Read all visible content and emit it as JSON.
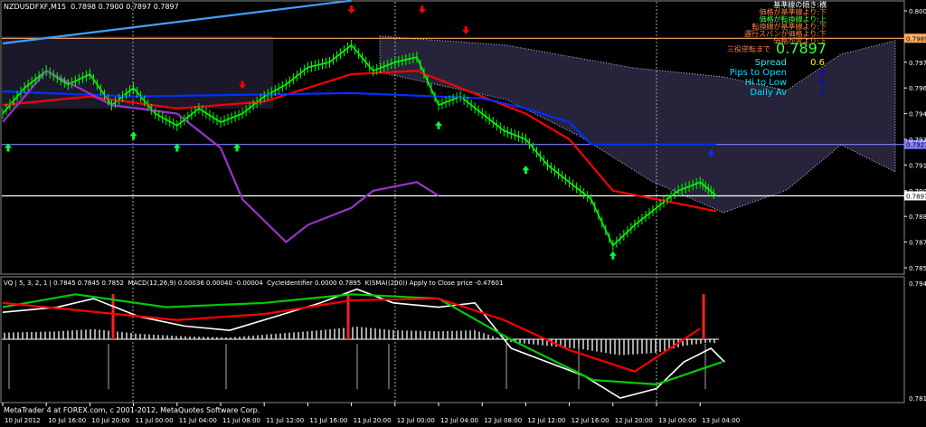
{
  "header": {
    "symbol": "NZDUSDFXF,M15",
    "ohlc": "0.7898 0.7900 0.7897 0.7897"
  },
  "subwindow_header": "VQ | 5, 3, 2, 1 | 0.7845 0.7845 0.7852  MACD(12,26,9) 0.00036 0.00040 -0.00004  CycleIdentifier 0.0000 0.7895  K(SMA((200)) Apply to Close price -0.47601",
  "footer": "MetaTrader 4 at FOREX.com, c 2001-2012, MetaQuotes Software Corp.",
  "ichimoku_status": [
    {
      "text": "基準線の傾き:横",
      "color": "#ffffff"
    },
    {
      "text": "価格が基準線より:下",
      "color": "#ff8040"
    },
    {
      "text": "価格が転換線より:上",
      "color": "#40ff40"
    },
    {
      "text": "転換線が基準線より:下",
      "color": "#ff8040"
    },
    {
      "text": "遅行スパンが価格より:下",
      "color": "#ff8040"
    },
    {
      "text": "価格が雲より:下",
      "color": "#ff8040"
    },
    {
      "text": "三役逆転まで",
      "color": "#ff8040"
    }
  ],
  "info_panel": {
    "price": "0.7897",
    "rows": [
      {
        "label": "Spread",
        "value": "0.6",
        "label_color": "#40e0f0",
        "value_color": "#ffff00"
      },
      {
        "label": "Pips to Open",
        "value": "2",
        "label_color": "#00e0ff",
        "value_color": "#0000ff"
      },
      {
        "label": "Hi to Low",
        "value": "4",
        "label_color": "#00e0ff",
        "value_color": "#0000ff"
      },
      {
        "label": "Daily Av",
        "value": "7",
        "label_color": "#00e0ff",
        "value_color": "#0000ff"
      }
    ]
  },
  "colors": {
    "background": "#000000",
    "candles": "#00ff00",
    "kijun": "#ff0000",
    "blue_line": "#0030ff",
    "chikou": "#9933cc",
    "cloud": "#ccccff",
    "orange_level": "#ffb060",
    "lavender_level": "#8080ff"
  },
  "chart_data": [
    {
      "type": "line",
      "title": "NZDUSDFXF,M15",
      "ylim": [
        0.7848,
        0.8012
      ],
      "y_ticks": [
        "0.8005",
        "0.7975",
        "0.7960",
        "0.7945",
        "0.7930",
        "0.7915",
        "0.7900",
        "0.7885",
        "0.7870",
        "0.7855"
      ],
      "highlighted_levels": [
        {
          "value": "0.7989",
          "color": "#ffb060",
          "text_color": "#000000"
        },
        {
          "value": "0.7927",
          "color": "#8080ff",
          "text_color": "#000000"
        },
        {
          "value": "0.7897",
          "color": "#ffffff",
          "text_color": "#000000"
        }
      ],
      "x_ticks": [
        "10 Jul 2012",
        "10 Jul 16:00",
        "10 Jul 20:00",
        "11 Jul 00:00",
        "11 Jul 04:00",
        "11 Jul 08:00",
        "11 Jul 12:00",
        "11 Jul 16:00",
        "11 Jul 20:00",
        "12 Jul 00:00",
        "12 Jul 04:00",
        "12 Jul 08:00",
        "12 Jul 12:00",
        "12 Jul 16:00",
        "12 Jul 20:00",
        "13 Jul 00:00",
        "13 Jul 04:00"
      ],
      "series": [
        {
          "id": "close",
          "color": "#00ff00",
          "points": [
            [
              "10 Jul 12:00",
              0.7945
            ],
            [
              "10 Jul 14:00",
              0.796
            ],
            [
              "10 Jul 16:00",
              0.797
            ],
            [
              "10 Jul 18:00",
              0.7962
            ],
            [
              "10 Jul 20:00",
              0.7968
            ],
            [
              "10 Jul 22:00",
              0.795
            ],
            [
              "11 Jul 00:00",
              0.796
            ],
            [
              "11 Jul 02:00",
              0.7945
            ],
            [
              "11 Jul 04:00",
              0.7938
            ],
            [
              "11 Jul 06:00",
              0.7948
            ],
            [
              "11 Jul 08:00",
              0.794
            ],
            [
              "11 Jul 10:00",
              0.7945
            ],
            [
              "11 Jul 12:00",
              0.7955
            ],
            [
              "11 Jul 14:00",
              0.7962
            ],
            [
              "11 Jul 16:00",
              0.7972
            ],
            [
              "11 Jul 18:00",
              0.7975
            ],
            [
              "11 Jul 20:00",
              0.7985
            ],
            [
              "11 Jul 22:00",
              0.797
            ],
            [
              "12 Jul 00:00",
              0.7975
            ],
            [
              "12 Jul 02:00",
              0.7978
            ],
            [
              "12 Jul 04:00",
              0.795
            ],
            [
              "12 Jul 06:00",
              0.7955
            ],
            [
              "12 Jul 08:00",
              0.7945
            ],
            [
              "12 Jul 10:00",
              0.7935
            ],
            [
              "12 Jul 12:00",
              0.793
            ],
            [
              "12 Jul 14:00",
              0.7915
            ],
            [
              "12 Jul 16:00",
              0.7905
            ],
            [
              "12 Jul 18:00",
              0.7895
            ],
            [
              "12 Jul 20:00",
              0.7868
            ],
            [
              "12 Jul 22:00",
              0.788
            ],
            [
              "13 Jul 00:00",
              0.789
            ],
            [
              "13 Jul 02:00",
              0.79
            ],
            [
              "13 Jul 04:00",
              0.7905
            ],
            [
              "13 Jul 05:30",
              0.7897
            ]
          ]
        },
        {
          "id": "kijun",
          "color": "#ff0000",
          "points": [
            [
              "10 Jul 12:00",
              0.795
            ],
            [
              "10 Jul 20:00",
              0.7955
            ],
            [
              "11 Jul 04:00",
              0.7948
            ],
            [
              "11 Jul 12:00",
              0.7952
            ],
            [
              "11 Jul 20:00",
              0.7968
            ],
            [
              "12 Jul 02:00",
              0.797
            ],
            [
              "12 Jul 08:00",
              0.7955
            ],
            [
              "12 Jul 12:00",
              0.7945
            ],
            [
              "12 Jul 16:00",
              0.793
            ],
            [
              "12 Jul 20:00",
              0.79
            ],
            [
              "13 Jul 00:00",
              0.7895
            ],
            [
              "13 Jul 05:30",
              0.7888
            ]
          ]
        },
        {
          "id": "blue",
          "color": "#0030ff",
          "points": [
            [
              "10 Jul 12:00",
              0.7958
            ],
            [
              "11 Jul 00:00",
              0.7955
            ],
            [
              "11 Jul 20:00",
              0.7957
            ],
            [
              "12 Jul 08:00",
              0.7954
            ],
            [
              "12 Jul 12:00",
              0.7948
            ],
            [
              "12 Jul 16:00",
              0.794
            ],
            [
              "12 Jul 18:00",
              0.7927
            ],
            [
              "13 Jul 05:30",
              0.7927
            ]
          ]
        },
        {
          "id": "chikou",
          "color": "#9933cc",
          "points": [
            [
              "10 Jul 12:00",
              0.794
            ],
            [
              "10 Jul 16:00",
              0.797
            ],
            [
              "10 Jul 22:00",
              0.795
            ],
            [
              "11 Jul 04:00",
              0.7945
            ],
            [
              "11 Jul 08:00",
              0.7925
            ],
            [
              "11 Jul 10:00",
              0.7895
            ],
            [
              "11 Jul 14:00",
              0.787
            ],
            [
              "11 Jul 16:00",
              0.788
            ],
            [
              "11 Jul 20:00",
              0.789
            ],
            [
              "11 Jul 22:00",
              0.79
            ],
            [
              "12 Jul 02:00",
              0.7905
            ],
            [
              "12 Jul 04:00",
              0.7897
            ]
          ]
        },
        {
          "id": "cyan_trend",
          "color": "#40a0ff",
          "points": [
            [
              "10 Jul 12:00",
              0.7986
            ],
            [
              "11 Jul 20:00",
              0.8011
            ]
          ]
        }
      ],
      "arrows": [
        {
          "dir": "up",
          "time": "10 Jul 12:30",
          "price": 0.7925,
          "color": "#00ff40"
        },
        {
          "dir": "up",
          "time": "11 Jul 00:00",
          "price": 0.7932,
          "color": "#00ff40"
        },
        {
          "dir": "up",
          "time": "11 Jul 04:00",
          "price": 0.7925,
          "color": "#00ff40"
        },
        {
          "dir": "up",
          "time": "11 Jul 09:30",
          "price": 0.7925,
          "color": "#00ff40"
        },
        {
          "dir": "up",
          "time": "12 Jul 04:00",
          "price": 0.7938,
          "color": "#00ff40"
        },
        {
          "dir": "up",
          "time": "12 Jul 12:00",
          "price": 0.7912,
          "color": "#00ff40"
        },
        {
          "dir": "up",
          "time": "12 Jul 20:00",
          "price": 0.7862,
          "color": "#00ff40"
        },
        {
          "dir": "down",
          "time": "11 Jul 10:00",
          "price": 0.7962,
          "color": "#ff0000"
        },
        {
          "dir": "down",
          "time": "11 Jul 20:00",
          "price": 0.8006,
          "color": "#ff0000"
        },
        {
          "dir": "down",
          "time": "12 Jul 02:30",
          "price": 0.8006,
          "color": "#ff0000"
        },
        {
          "dir": "down",
          "time": "12 Jul 06:30",
          "price": 0.7994,
          "color": "#ff0000"
        },
        {
          "dir": "down",
          "time": "13 Jul 05:00",
          "price": 0.7922,
          "color": "#0030ff"
        }
      ]
    },
    {
      "type": "line",
      "title": "VQ | 5, 3, 2, 1",
      "ylim": [
        0.7814,
        0.7948
      ],
      "y_ticks": [
        "0.7948",
        "0.7814"
      ],
      "series": [
        {
          "id": "vq",
          "color": "#ffffff",
          "points": [
            [
              "10 Jul 12:00",
              0.7914
            ],
            [
              "10 Jul 17:00",
              0.792
            ],
            [
              "10 Jul 20:20",
              0.793
            ],
            [
              "11 Jul 00:30",
              0.7909
            ],
            [
              "11 Jul 04:40",
              0.7898
            ],
            [
              "11 Jul 08:50",
              0.7893
            ],
            [
              "11 Jul 13:00",
              0.7909
            ],
            [
              "11 Jul 17:10",
              0.7925
            ],
            [
              "11 Jul 20:30",
              0.7941
            ],
            [
              "11 Jul 23:50",
              0.7925
            ],
            [
              "12 Jul 04:00",
              0.792
            ],
            [
              "12 Jul 07:20",
              0.7925
            ],
            [
              "12 Jul 10:40",
              0.7872
            ],
            [
              "12 Jul 14:00",
              0.7856
            ],
            [
              "12 Jul 17:20",
              0.784
            ],
            [
              "12 Jul 20:40",
              0.7814
            ],
            [
              "13 Jul 00:00",
              0.7825
            ],
            [
              "13 Jul 02:30",
              0.7856
            ],
            [
              "13 Jul 05:00",
              0.7872
            ],
            [
              "13 Jul 06:15",
              0.7856
            ]
          ]
        },
        {
          "id": "vq_green",
          "color": "#00cc00",
          "points": [
            [
              "10 Jul 12:00",
              0.792
            ],
            [
              "10 Jul 18:40",
              0.7935
            ],
            [
              "11 Jul 03:00",
              0.792
            ],
            [
              "11 Jul 12:00",
              0.7925
            ],
            [
              "11 Jul 20:00",
              0.7935
            ],
            [
              "12 Jul 04:00",
              0.793
            ],
            [
              "12 Jul 10:40",
              0.7882
            ],
            [
              "12 Jul 18:10",
              0.7835
            ],
            [
              "13 Jul 00:00",
              0.783
            ],
            [
              "13 Jul 06:00",
              0.7856
            ]
          ]
        },
        {
          "id": "vq_red",
          "color": "#ff0000",
          "points": [
            [
              "10 Jul 12:00",
              0.7925
            ],
            [
              "10 Jul 20:00",
              0.7915
            ],
            [
              "11 Jul 04:00",
              0.7905
            ],
            [
              "11 Jul 12:00",
              0.7912
            ],
            [
              "11 Jul 20:00",
              0.7928
            ],
            [
              "12 Jul 04:00",
              0.793
            ],
            [
              "12 Jul 10:00",
              0.7905
            ],
            [
              "12 Jul 16:00",
              0.787
            ],
            [
              "12 Jul 22:00",
              0.7845
            ],
            [
              "13 Jul 04:00",
              0.7895
            ]
          ]
        }
      ]
    }
  ]
}
